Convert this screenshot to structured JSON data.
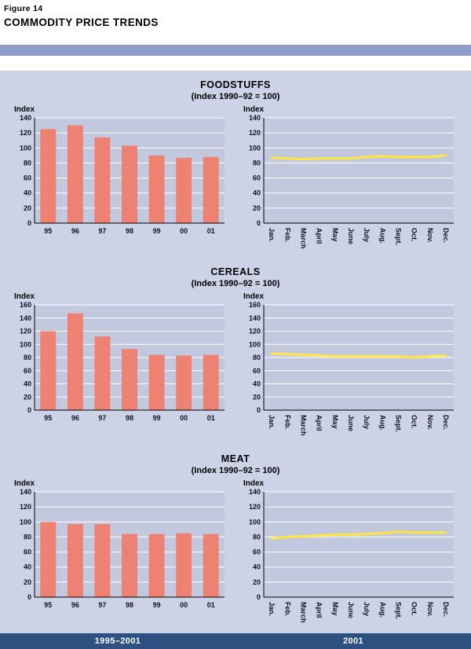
{
  "header": {
    "figure_label": "Figure 14",
    "title": "COMMODITY PRICE TRENDS"
  },
  "footer": {
    "left_label": "1995–2001",
    "right_label": "2001"
  },
  "colors": {
    "band": "#8d9cc9",
    "panel_bg": "#cdd3e7",
    "plot_bg": "#c2c9de",
    "grid": "#ffffff",
    "bar": "#ee8272",
    "line": "#ffe740",
    "footer_bg": "#2d5180",
    "axis": "#000000"
  },
  "chart_data": [
    {
      "id": "foodstuffs-annual",
      "type": "bar",
      "title": "FOODSTUFFS",
      "subtitle": "(Index 1990–92 = 100)",
      "ylabel": "Index",
      "ylim": [
        0,
        140
      ],
      "ytick_step": 20,
      "grid": true,
      "categories": [
        "95",
        "96",
        "97",
        "98",
        "99",
        "00",
        "01"
      ],
      "values": [
        125,
        130,
        114,
        103,
        90,
        87,
        88
      ]
    },
    {
      "id": "foodstuffs-monthly",
      "type": "line",
      "title": "FOODSTUFFS",
      "subtitle": "(Index 1990–92 = 100)",
      "ylabel": "Index",
      "ylim": [
        0,
        140
      ],
      "ytick_step": 20,
      "grid": true,
      "categories": [
        "Jan.",
        "Feb.",
        "March",
        "April",
        "May",
        "June",
        "July",
        "Aug.",
        "Sept.",
        "Oct.",
        "Nov.",
        "Dec."
      ],
      "values": [
        87,
        86,
        85,
        86,
        86,
        86,
        88,
        89,
        88,
        88,
        88,
        90
      ]
    },
    {
      "id": "cereals-annual",
      "type": "bar",
      "title": "CEREALS",
      "subtitle": "(Index 1990–92 = 100)",
      "ylabel": "Index",
      "ylim": [
        0,
        160
      ],
      "ytick_step": 20,
      "grid": true,
      "categories": [
        "95",
        "96",
        "97",
        "98",
        "99",
        "00",
        "01"
      ],
      "values": [
        120,
        147,
        112,
        93,
        84,
        83,
        84
      ]
    },
    {
      "id": "cereals-monthly",
      "type": "line",
      "title": "CEREALS",
      "subtitle": "(Index 1990–92 = 100)",
      "ylabel": "Index",
      "ylim": [
        0,
        160
      ],
      "ytick_step": 20,
      "grid": true,
      "categories": [
        "Jan.",
        "Feb.",
        "March",
        "April",
        "May",
        "June",
        "July",
        "Aug.",
        "Sept.",
        "Oct.",
        "Nov.",
        "Dec."
      ],
      "values": [
        86,
        85,
        84,
        83,
        82,
        82,
        82,
        82,
        82,
        80,
        82,
        83
      ]
    },
    {
      "id": "meat-annual",
      "type": "bar",
      "title": "MEAT",
      "subtitle": "(Index 1990–92 = 100)",
      "ylabel": "Index",
      "ylim": [
        0,
        140
      ],
      "ytick_step": 20,
      "grid": true,
      "categories": [
        "95",
        "96",
        "97",
        "98",
        "99",
        "00",
        "01"
      ],
      "values": [
        100,
        97,
        97,
        84,
        84,
        85,
        84
      ]
    },
    {
      "id": "meat-monthly",
      "type": "line",
      "title": "MEAT",
      "subtitle": "(Index 1990–92 = 100)",
      "ylabel": "Index",
      "ylim": [
        0,
        140
      ],
      "ytick_step": 20,
      "grid": true,
      "categories": [
        "Jan.",
        "Feb.",
        "March",
        "April",
        "May",
        "June",
        "July",
        "Aug.",
        "Sept.",
        "Oct.",
        "Nov.",
        "Dec."
      ],
      "values": [
        78,
        80,
        81,
        82,
        83,
        83,
        84,
        85,
        87,
        86,
        86,
        86
      ]
    }
  ]
}
